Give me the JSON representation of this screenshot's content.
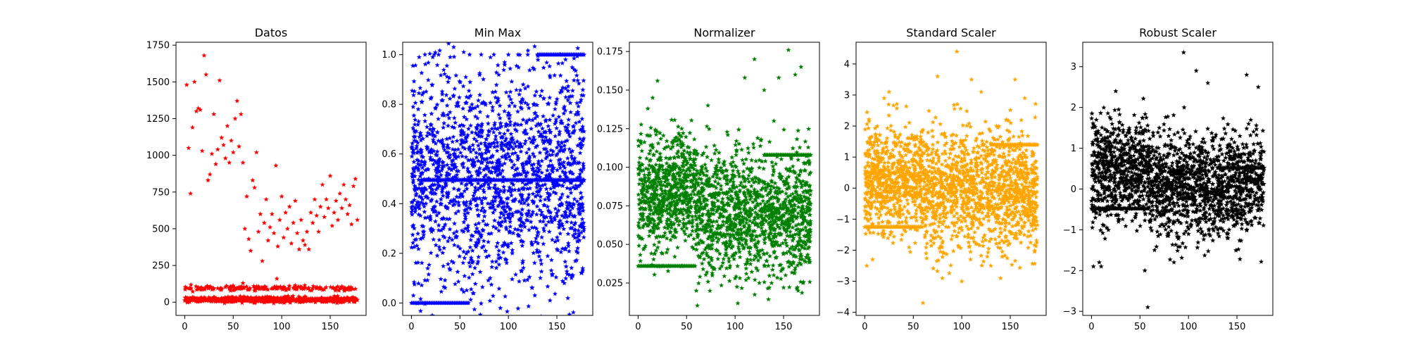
{
  "figure": {
    "background": "#ffffff",
    "marker": "star"
  },
  "chart_data": [
    {
      "type": "scatter",
      "title": "Datos",
      "color": "#ff0000",
      "xlim": [
        -9,
        187
      ],
      "ylim": [
        -90,
        1770
      ],
      "xticks": [
        0,
        50,
        100,
        150
      ],
      "yticks": [
        0,
        250,
        500,
        750,
        1000,
        1250,
        1500,
        1750
      ],
      "series": [
        {
          "points": [
            [
              2,
              1480
            ],
            [
              4,
              1050
            ],
            [
              6,
              740
            ],
            [
              8,
              1190
            ],
            [
              10,
              1500
            ],
            [
              12,
              1300
            ],
            [
              14,
              1320
            ],
            [
              16,
              1310
            ],
            [
              18,
              1030
            ],
            [
              20,
              1680
            ],
            [
              22,
              1550
            ],
            [
              24,
              830
            ],
            [
              26,
              870
            ],
            [
              28,
              1010
            ],
            [
              30,
              1280
            ],
            [
              32,
              940
            ],
            [
              34,
              1040
            ],
            [
              36,
              1510
            ],
            [
              38,
              1120
            ],
            [
              40,
              1070
            ],
            [
              42,
              980
            ],
            [
              44,
              1200
            ],
            [
              46,
              950
            ],
            [
              48,
              1100
            ],
            [
              50,
              1020
            ],
            [
              52,
              1250
            ],
            [
              54,
              1370
            ],
            [
              56,
              1060
            ],
            [
              58,
              1280
            ],
            [
              60,
              950
            ],
            [
              62,
              500
            ],
            [
              64,
              720
            ],
            [
              66,
              430
            ],
            [
              68,
              350
            ],
            [
              70,
              830
            ],
            [
              72,
              780
            ],
            [
              74,
              1020
            ],
            [
              76,
              480
            ],
            [
              78,
              600
            ],
            [
              80,
              280
            ],
            [
              82,
              540
            ],
            [
              84,
              700
            ],
            [
              86,
              420
            ],
            [
              88,
              510
            ],
            [
              90,
              600
            ],
            [
              92,
              470
            ],
            [
              94,
              930
            ],
            [
              96,
              380
            ],
            [
              98,
              560
            ],
            [
              100,
              720
            ],
            [
              102,
              440
            ],
            [
              104,
              610
            ],
            [
              106,
              500
            ],
            [
              108,
              650
            ],
            [
              110,
              400
            ],
            [
              112,
              540
            ],
            [
              114,
              690
            ],
            [
              116,
              470
            ],
            [
              118,
              360
            ],
            [
              120,
              560
            ],
            [
              122,
              420
            ],
            [
              124,
              390
            ],
            [
              126,
              480
            ],
            [
              128,
              360
            ],
            [
              130,
              610
            ],
            [
              132,
              540
            ],
            [
              134,
              700
            ],
            [
              136,
              590
            ],
            [
              138,
              480
            ],
            [
              140,
              650
            ],
            [
              142,
              800
            ],
            [
              144,
              580
            ],
            [
              146,
              700
            ],
            [
              148,
              640
            ],
            [
              150,
              860
            ],
            [
              152,
              520
            ],
            [
              154,
              610
            ],
            [
              156,
              690
            ],
            [
              158,
              560
            ],
            [
              160,
              740
            ],
            [
              162,
              640
            ],
            [
              164,
              800
            ],
            [
              166,
              700
            ],
            [
              168,
              600
            ],
            [
              170,
              660
            ],
            [
              172,
              530
            ],
            [
              174,
              790
            ],
            [
              176,
              840
            ],
            [
              178,
              560
            ]
          ]
        },
        {
          "band": [
            0,
            178,
            78,
            112,
            180
          ]
        },
        {
          "band": [
            0,
            178,
            0,
            35,
            720
          ]
        },
        {
          "points": [
            [
              95,
              160
            ],
            [
              60,
              130
            ]
          ]
        }
      ]
    },
    {
      "type": "scatter",
      "title": "Min Max",
      "color": "#0000ff",
      "xlim": [
        -9,
        187
      ],
      "ylim": [
        -0.05,
        1.05
      ],
      "xticks": [
        0,
        50,
        100,
        150
      ],
      "yticks": [
        0.0,
        0.2,
        0.4,
        0.6,
        0.8,
        1.0
      ],
      "series": [
        {
          "band": [
            0,
            178,
            0.05,
            0.95,
            1800
          ]
        },
        {
          "line": [
            0,
            60,
            0.0
          ]
        },
        {
          "line": [
            130,
            178,
            1.0
          ]
        },
        {
          "line": [
            10,
            178,
            0.495
          ]
        },
        {
          "points": [
            [
              2,
              0.03
            ],
            [
              8,
              0.99
            ],
            [
              14,
              1.0
            ],
            [
              22,
              0.99
            ],
            [
              28,
              1.0
            ],
            [
              40,
              0.99
            ],
            [
              60,
              1.0
            ],
            [
              72,
              1.0
            ],
            [
              85,
              1.0
            ],
            [
              100,
              1.0
            ],
            [
              110,
              1.0
            ],
            [
              120,
              1.0
            ]
          ]
        }
      ]
    },
    {
      "type": "scatter",
      "title": "Normalizer",
      "color": "#008000",
      "xlim": [
        -9,
        187
      ],
      "ylim": [
        0.004,
        0.181
      ],
      "xticks": [
        0,
        50,
        100,
        150
      ],
      "yticks": [
        0.025,
        0.05,
        0.075,
        0.1,
        0.125,
        0.15,
        0.175
      ],
      "series": [
        {
          "band": [
            0,
            60,
            0.045,
            0.12,
            700
          ]
        },
        {
          "band": [
            60,
            178,
            0.03,
            0.11,
            1300
          ]
        },
        {
          "line": [
            0,
            60,
            0.036
          ]
        },
        {
          "line": [
            130,
            178,
            0.108
          ]
        },
        {
          "points": [
            [
              10,
              0.138
            ],
            [
              15,
              0.145
            ],
            [
              20,
              0.156
            ],
            [
              45,
              0.125
            ],
            [
              72,
              0.14
            ],
            [
              110,
              0.158
            ],
            [
              120,
              0.17
            ],
            [
              130,
              0.15
            ],
            [
              145,
              0.158
            ],
            [
              155,
              0.176
            ],
            [
              162,
              0.16
            ],
            [
              168,
              0.165
            ],
            [
              140,
              0.13
            ],
            [
              165,
              0.02
            ],
            [
              170,
              0.025
            ],
            [
              150,
              0.022
            ],
            [
              100,
              0.028
            ],
            [
              60,
              0.02
            ]
          ]
        }
      ]
    },
    {
      "type": "scatter",
      "title": "Standard Scaler",
      "color": "#ffa500",
      "xlim": [
        -9,
        187
      ],
      "ylim": [
        -4.1,
        4.7
      ],
      "xticks": [
        0,
        50,
        100,
        150
      ],
      "yticks": [
        -4,
        -3,
        -2,
        -1,
        0,
        1,
        2,
        3,
        4
      ],
      "series": [
        {
          "band": [
            0,
            60,
            -1.4,
            2.0,
            700
          ]
        },
        {
          "band": [
            60,
            178,
            -2.0,
            1.8,
            1300
          ]
        },
        {
          "line": [
            0,
            60,
            -1.25
          ]
        },
        {
          "line": [
            130,
            178,
            1.4
          ]
        },
        {
          "points": [
            [
              2,
              -2.5
            ],
            [
              8,
              -2.3
            ],
            [
              20,
              2.9
            ],
            [
              25,
              3.1
            ],
            [
              60,
              -3.7
            ],
            [
              95,
              4.4
            ],
            [
              110,
              3.5
            ],
            [
              120,
              3.1
            ],
            [
              155,
              3.5
            ],
            [
              165,
              2.9
            ],
            [
              100,
              -3.0
            ],
            [
              75,
              3.6
            ],
            [
              80,
              -2.9
            ],
            [
              130,
              -2.5
            ],
            [
              140,
              -2.9
            ]
          ]
        }
      ]
    },
    {
      "type": "scatter",
      "title": "Robust Scaler",
      "color": "#000000",
      "xlim": [
        -9,
        187
      ],
      "ylim": [
        -3.1,
        3.6
      ],
      "xticks": [
        0,
        50,
        100,
        150
      ],
      "yticks": [
        -3,
        -2,
        -1,
        0,
        1,
        2,
        3
      ],
      "series": [
        {
          "band": [
            0,
            60,
            -0.7,
            1.7,
            700
          ]
        },
        {
          "band": [
            60,
            178,
            -1.2,
            1.4,
            1300
          ]
        },
        {
          "line": [
            0,
            60,
            -0.48
          ]
        },
        {
          "line": [
            130,
            178,
            0.52
          ]
        },
        {
          "points": [
            [
              2,
              -1.9
            ],
            [
              8,
              -1.8
            ],
            [
              10,
              -1.9
            ],
            [
              25,
              2.4
            ],
            [
              58,
              -2.9
            ],
            [
              95,
              3.35
            ],
            [
              108,
              2.9
            ],
            [
              120,
              2.6
            ],
            [
              160,
              2.8
            ],
            [
              172,
              2.5
            ],
            [
              85,
              -1.8
            ],
            [
              55,
              -2.0
            ],
            [
              65,
              -1.5
            ]
          ]
        }
      ]
    }
  ]
}
